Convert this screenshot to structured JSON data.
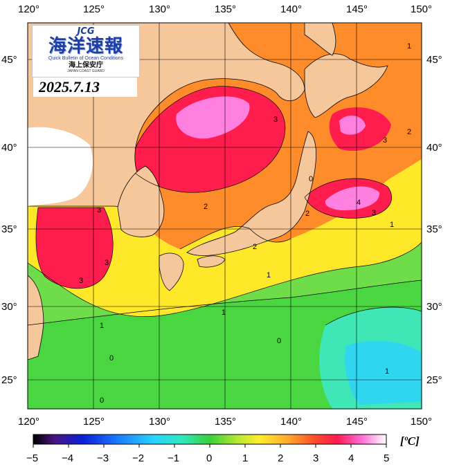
{
  "logo": {
    "agency_mark": "JCG",
    "title_jp": "海洋速報",
    "title_en": "Quick Bulletin of Ocean Conditions",
    "subtitle_jp": "海上保安庁",
    "subtitle_en": "JAPAN COAST GUARD"
  },
  "date": "2025.7.13",
  "axes": {
    "longitude_ticks": [
      "120°",
      "125°",
      "130°",
      "135°",
      "140°",
      "145°",
      "150°"
    ],
    "latitude_ticks": [
      "45°",
      "40°",
      "35°",
      "30°",
      "25°"
    ]
  },
  "colorbar": {
    "min": -5,
    "max": 5,
    "tick_labels": [
      "−5",
      "−4",
      "−3",
      "−2",
      "−1",
      "0",
      "1",
      "2",
      "3",
      "4",
      "5"
    ],
    "unit": "[ºC]"
  },
  "contour_labels": [
    "1",
    "3",
    "3",
    "0",
    "2",
    "4",
    "3",
    "1",
    "3",
    "2",
    "3",
    "3",
    "2",
    "1",
    "2",
    "1",
    "1",
    "0",
    "0",
    "1",
    "0"
  ],
  "colors": {
    "land": "#f5c79a",
    "anomaly_5": "#ffffff",
    "anomaly_4": "#ff80e0",
    "anomaly_3": "#ff1d4e",
    "anomaly_2": "#ff8c2a",
    "anomaly_1": "#ffe82a",
    "anomaly_0": "#4ad640",
    "anomaly_minus1": "#3fe6b6",
    "anomaly_minus2": "#30d5f0"
  }
}
